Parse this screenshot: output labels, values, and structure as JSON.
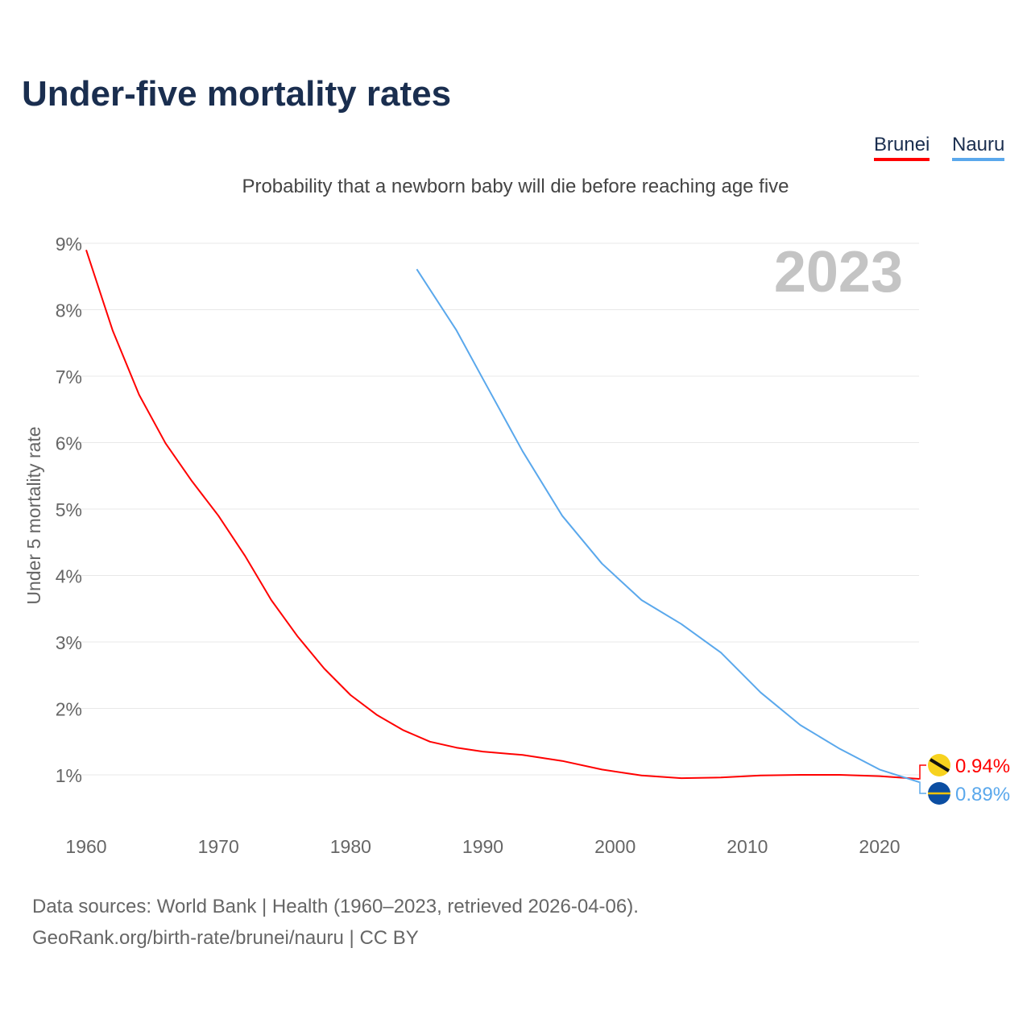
{
  "title": "Under-five mortality rates",
  "subtitle": "Probability that a newborn baby will die before reaching age five",
  "year_watermark": "2023",
  "source_line1": "Data sources: World Bank | Health (1960–2023, retrieved 2026-04-06).",
  "source_line2": "GeoRank.org/birth-rate/brunei/nauru | CC BY",
  "chart_data": {
    "type": "line",
    "title": "Under-five mortality rates",
    "ylabel": "Under 5 mortality rate",
    "xlabel": "",
    "xlim": [
      1960,
      2023
    ],
    "ylim": [
      0.5,
      9
    ],
    "yticks": [
      1,
      2,
      3,
      4,
      5,
      6,
      7,
      8,
      9
    ],
    "ytick_labels": [
      "1%",
      "2%",
      "3%",
      "4%",
      "5%",
      "6%",
      "7%",
      "8%",
      "9%"
    ],
    "xticks": [
      1960,
      1970,
      1980,
      1990,
      2000,
      2010,
      2020
    ],
    "xtick_labels": [
      "1960",
      "1970",
      "1980",
      "1990",
      "2000",
      "2010",
      "2020"
    ],
    "legend": "top-right",
    "grid": true,
    "series": [
      {
        "name": "Brunei",
        "color": "#ff0000",
        "end_label": "0.94%",
        "x": [
          1960,
          1962,
          1964,
          1966,
          1968,
          1970,
          1972,
          1974,
          1976,
          1978,
          1980,
          1982,
          1984,
          1986,
          1988,
          1990,
          1993,
          1996,
          1999,
          2002,
          2005,
          2008,
          2011,
          2014,
          2017,
          2020,
          2023
        ],
        "y": [
          8.9,
          7.69,
          6.72,
          5.99,
          5.42,
          4.9,
          4.3,
          3.63,
          3.08,
          2.6,
          2.2,
          1.9,
          1.67,
          1.5,
          1.41,
          1.35,
          1.3,
          1.21,
          1.08,
          0.99,
          0.95,
          0.96,
          0.99,
          1.0,
          1.0,
          0.98,
          0.94
        ]
      },
      {
        "name": "Nauru",
        "color": "#5aa8ec",
        "end_label": "0.89%",
        "x": [
          1985,
          1988,
          1990,
          1993,
          1996,
          1999,
          2002,
          2005,
          2008,
          2011,
          2014,
          2017,
          2020,
          2023
        ],
        "y": [
          8.61,
          7.69,
          6.96,
          5.87,
          4.9,
          4.18,
          3.63,
          3.27,
          2.84,
          2.24,
          1.75,
          1.39,
          1.08,
          0.89
        ]
      }
    ]
  }
}
